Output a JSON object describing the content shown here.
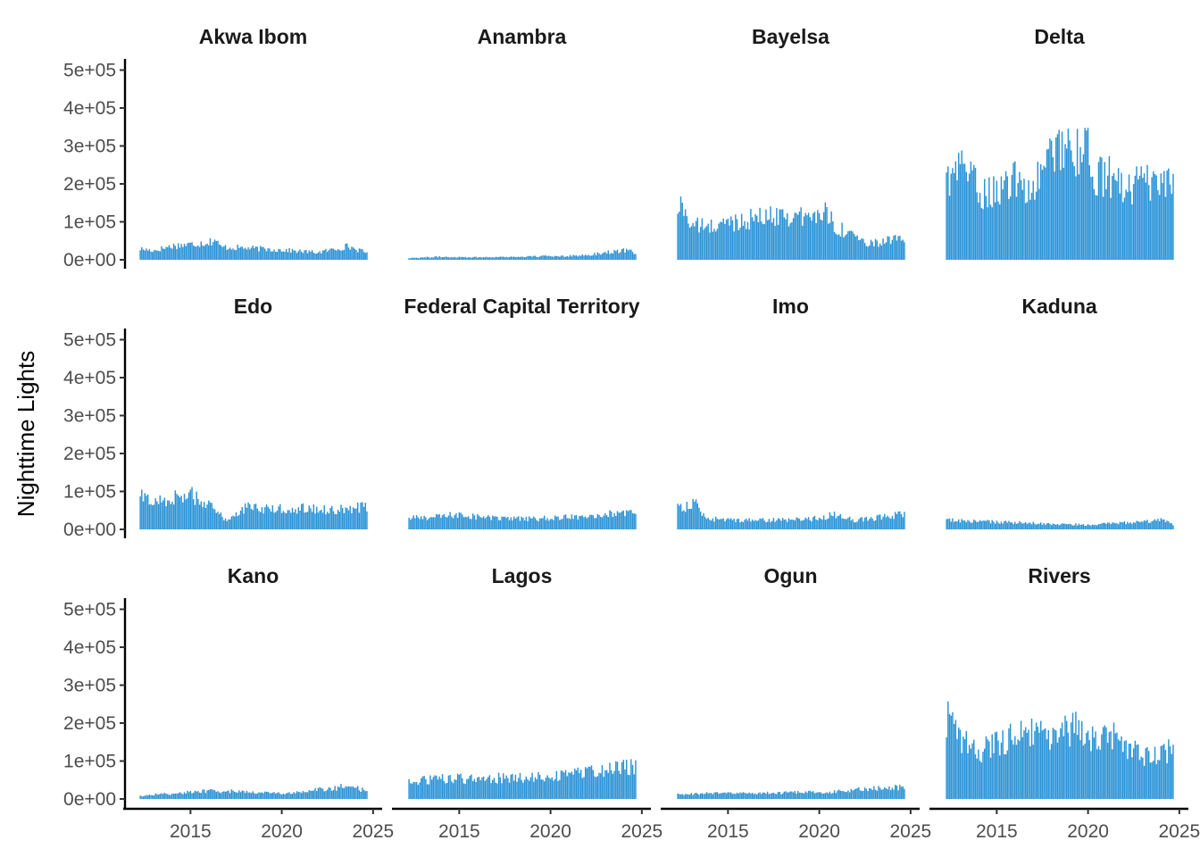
{
  "chart_data": {
    "type": "bar",
    "facet_layout": "4 columns x 3 rows",
    "ylabel": "Nighttime Lights",
    "xlabel": "",
    "y_ticks": [
      "0e+00",
      "1e+05",
      "2e+05",
      "3e+05",
      "4e+05",
      "5e+05"
    ],
    "y_tick_values": [
      0,
      100000,
      200000,
      300000,
      400000,
      500000
    ],
    "x_ticks": [
      "2015",
      "2020",
      "2025"
    ],
    "x_tick_values": [
      2015,
      2020,
      2025
    ],
    "xlim": [
      2012.0,
      2025.3
    ],
    "ylim": [
      0,
      530000
    ],
    "bar_color": "#2b93d6",
    "x_start": 2012.25,
    "x_step": 0.0833,
    "facets": [
      {
        "title": "Akwa Ibom",
        "anchors": [
          [
            2012.2,
            30000
          ],
          [
            2013,
            25000
          ],
          [
            2014,
            38000
          ],
          [
            2015,
            42000
          ],
          [
            2016,
            48000
          ],
          [
            2016.4,
            55000
          ],
          [
            2016.6,
            35000
          ],
          [
            2018,
            32000
          ],
          [
            2020,
            27000
          ],
          [
            2021,
            23000
          ],
          [
            2022,
            20000
          ],
          [
            2023,
            30000
          ],
          [
            2023.6,
            37000
          ],
          [
            2024.7,
            18000
          ]
        ]
      },
      {
        "title": "Anambra",
        "anchors": [
          [
            2012.2,
            5000
          ],
          [
            2014,
            8000
          ],
          [
            2016,
            7000
          ],
          [
            2018,
            8000
          ],
          [
            2020,
            10000
          ],
          [
            2022,
            12000
          ],
          [
            2023,
            20000
          ],
          [
            2024,
            25000
          ],
          [
            2024.7,
            20000
          ]
        ]
      },
      {
        "title": "Bayelsa",
        "anchors": [
          [
            2012.2,
            130000
          ],
          [
            2012.5,
            150000
          ],
          [
            2013,
            95000
          ],
          [
            2014,
            88000
          ],
          [
            2015,
            100000
          ],
          [
            2016,
            110000
          ],
          [
            2017,
            115000
          ],
          [
            2018,
            125000
          ],
          [
            2019,
            115000
          ],
          [
            2020,
            118000
          ],
          [
            2020.3,
            140000
          ],
          [
            2021,
            85000
          ],
          [
            2022,
            70000
          ],
          [
            2022.5,
            40000
          ],
          [
            2023,
            45000
          ],
          [
            2024,
            55000
          ],
          [
            2024.7,
            50000
          ]
        ]
      },
      {
        "title": "Delta",
        "anchors": [
          [
            2012.2,
            250000
          ],
          [
            2012.6,
            200000
          ],
          [
            2013,
            280000
          ],
          [
            2013.6,
            230000
          ],
          [
            2014,
            180000
          ],
          [
            2015,
            190000
          ],
          [
            2016,
            215000
          ],
          [
            2017,
            190000
          ],
          [
            2017.5,
            240000
          ],
          [
            2018,
            285000
          ],
          [
            2018.5,
            320000
          ],
          [
            2019,
            320000
          ],
          [
            2019.6,
            270000
          ],
          [
            2020,
            300000
          ],
          [
            2020.5,
            220000
          ],
          [
            2021,
            230000
          ],
          [
            2022,
            195000
          ],
          [
            2023,
            210000
          ],
          [
            2024,
            190000
          ],
          [
            2024.7,
            205000
          ]
        ]
      },
      {
        "title": "Edo",
        "anchors": [
          [
            2012.2,
            90000
          ],
          [
            2013,
            75000
          ],
          [
            2014,
            85000
          ],
          [
            2015,
            95000
          ],
          [
            2015.6,
            80000
          ],
          [
            2016.5,
            45000
          ],
          [
            2017,
            25000
          ],
          [
            2018,
            60000
          ],
          [
            2019,
            55000
          ],
          [
            2020,
            55000
          ],
          [
            2021,
            58000
          ],
          [
            2022,
            55000
          ],
          [
            2023,
            52000
          ],
          [
            2024,
            58000
          ],
          [
            2024.7,
            60000
          ]
        ]
      },
      {
        "title": "Federal Capital Territory",
        "anchors": [
          [
            2012.2,
            30000
          ],
          [
            2014,
            35000
          ],
          [
            2015,
            40000
          ],
          [
            2017,
            30000
          ],
          [
            2019,
            28000
          ],
          [
            2021,
            33000
          ],
          [
            2022,
            38000
          ],
          [
            2023,
            42000
          ],
          [
            2024.7,
            42000
          ]
        ]
      },
      {
        "title": "Imo",
        "anchors": [
          [
            2012.2,
            65000
          ],
          [
            2012.8,
            60000
          ],
          [
            2013.2,
            75000
          ],
          [
            2013.6,
            40000
          ],
          [
            2014,
            28000
          ],
          [
            2016,
            25000
          ],
          [
            2018,
            25000
          ],
          [
            2020,
            30000
          ],
          [
            2020.7,
            40000
          ],
          [
            2021.5,
            32000
          ],
          [
            2022,
            25000
          ],
          [
            2023,
            30000
          ],
          [
            2024,
            38000
          ],
          [
            2024.7,
            40000
          ]
        ]
      },
      {
        "title": "Kaduna",
        "anchors": [
          [
            2012.2,
            25000
          ],
          [
            2014,
            22000
          ],
          [
            2016,
            18000
          ],
          [
            2018,
            15000
          ],
          [
            2020,
            12000
          ],
          [
            2021,
            15000
          ],
          [
            2022,
            18000
          ],
          [
            2023,
            20000
          ],
          [
            2024,
            25000
          ],
          [
            2024.7,
            12000
          ]
        ]
      },
      {
        "title": "Kano",
        "anchors": [
          [
            2012.2,
            8000
          ],
          [
            2013,
            12000
          ],
          [
            2014,
            15000
          ],
          [
            2016,
            22000
          ],
          [
            2018,
            20000
          ],
          [
            2020,
            15000
          ],
          [
            2021,
            18000
          ],
          [
            2022,
            25000
          ],
          [
            2023,
            30000
          ],
          [
            2023.6,
            38000
          ],
          [
            2024.7,
            20000
          ]
        ]
      },
      {
        "title": "Lagos",
        "anchors": [
          [
            2012.2,
            45000
          ],
          [
            2014,
            55000
          ],
          [
            2016,
            55000
          ],
          [
            2018,
            58000
          ],
          [
            2020,
            60000
          ],
          [
            2022,
            72000
          ],
          [
            2023,
            78000
          ],
          [
            2024,
            88000
          ],
          [
            2024.7,
            85000
          ]
        ]
      },
      {
        "title": "Ogun",
        "anchors": [
          [
            2012.2,
            12000
          ],
          [
            2014,
            16000
          ],
          [
            2016,
            15000
          ],
          [
            2018,
            17000
          ],
          [
            2020,
            18000
          ],
          [
            2021,
            20000
          ],
          [
            2022,
            25000
          ],
          [
            2023,
            28000
          ],
          [
            2024,
            32000
          ],
          [
            2024.7,
            30000
          ]
        ]
      },
      {
        "title": "Rivers",
        "anchors": [
          [
            2012.2,
            230000
          ],
          [
            2012.5,
            200000
          ],
          [
            2013,
            160000
          ],
          [
            2014,
            130000
          ],
          [
            2015,
            150000
          ],
          [
            2016,
            170000
          ],
          [
            2016.5,
            200000
          ],
          [
            2017,
            175000
          ],
          [
            2018,
            160000
          ],
          [
            2019,
            190000
          ],
          [
            2019.6,
            200000
          ],
          [
            2020,
            160000
          ],
          [
            2021,
            165000
          ],
          [
            2021.5,
            185000
          ],
          [
            2022,
            145000
          ],
          [
            2023,
            115000
          ],
          [
            2024,
            120000
          ],
          [
            2024.7,
            135000
          ]
        ]
      }
    ]
  }
}
